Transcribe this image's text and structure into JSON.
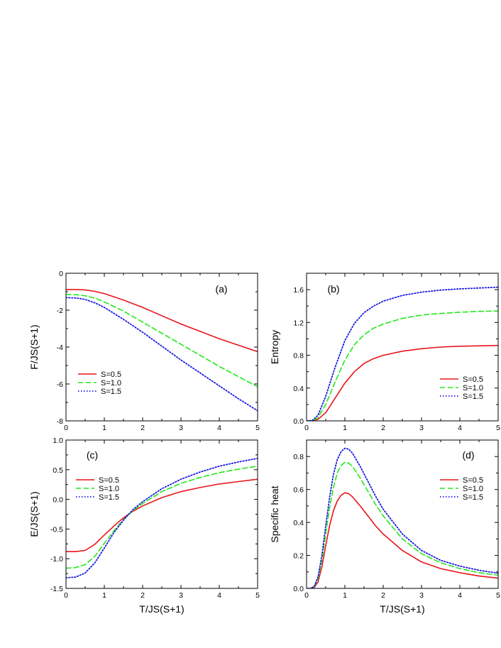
{
  "colors": {
    "s05": "#e8141a",
    "s10": "#22e81a",
    "s15": "#1a1ae0",
    "frame": "#000000"
  },
  "chart_data": [
    {
      "id": "a",
      "type": "line",
      "letter": "(a)",
      "xlabel": "",
      "ylabel": "F/JS(S+1)",
      "xlim": [
        0,
        5
      ],
      "ylim": [
        -8,
        0
      ],
      "xticks": [
        0,
        1,
        2,
        3,
        4,
        5
      ],
      "xtick_labels": [
        "0",
        "1",
        "2",
        "3",
        "4",
        "5"
      ],
      "yticks": [
        -8,
        -6,
        -4,
        -2,
        0
      ],
      "ytick_labels": [
        "-8",
        "-6",
        "-4",
        "-2",
        "0"
      ],
      "legend": "bottom-left",
      "x": [
        0,
        0.25,
        0.5,
        0.75,
        1,
        1.5,
        2,
        2.5,
        3,
        3.5,
        4,
        4.5,
        5
      ],
      "series": [
        {
          "name": "S=0.5",
          "style": "solid",
          "colorKey": "s05",
          "values": [
            -0.88,
            -0.88,
            -0.9,
            -0.98,
            -1.1,
            -1.45,
            -1.85,
            -2.3,
            -2.75,
            -3.15,
            -3.55,
            -3.9,
            -4.25
          ]
        },
        {
          "name": "S=1.0",
          "style": "dashed",
          "colorKey": "s10",
          "values": [
            -1.15,
            -1.16,
            -1.22,
            -1.35,
            -1.55,
            -2.05,
            -2.65,
            -3.25,
            -3.85,
            -4.45,
            -5.05,
            -5.6,
            -6.15
          ]
        },
        {
          "name": "S=1.5",
          "style": "dotted",
          "colorKey": "s15",
          "values": [
            -1.32,
            -1.34,
            -1.42,
            -1.6,
            -1.85,
            -2.5,
            -3.2,
            -3.95,
            -4.7,
            -5.4,
            -6.1,
            -6.8,
            -7.45
          ]
        }
      ]
    },
    {
      "id": "b",
      "type": "line",
      "letter": "(b)",
      "xlabel": "",
      "ylabel": "Entropy",
      "xlim": [
        0,
        5
      ],
      "ylim": [
        0,
        1.8
      ],
      "xticks": [
        0,
        1,
        2,
        3,
        4,
        5
      ],
      "xtick_labels": [
        "0",
        "1",
        "2",
        "3",
        "4",
        "5"
      ],
      "yticks": [
        0,
        0.4,
        0.8,
        1.2,
        1.6
      ],
      "ytick_labels": [
        "0.0",
        "0.4",
        "0.8",
        "1.2",
        "1.6"
      ],
      "legend": "bottom-right",
      "x": [
        0,
        0.15,
        0.3,
        0.5,
        0.75,
        1,
        1.25,
        1.5,
        1.75,
        2,
        2.5,
        3,
        3.5,
        4,
        4.5,
        5
      ],
      "series": [
        {
          "name": "S=0.5",
          "style": "solid",
          "colorKey": "s05",
          "values": [
            0,
            0,
            0.02,
            0.1,
            0.28,
            0.46,
            0.6,
            0.7,
            0.76,
            0.8,
            0.85,
            0.88,
            0.9,
            0.91,
            0.915,
            0.92
          ]
        },
        {
          "name": "S=1.0",
          "style": "dashed",
          "colorKey": "s10",
          "values": [
            0,
            0,
            0.04,
            0.2,
            0.48,
            0.74,
            0.93,
            1.05,
            1.13,
            1.18,
            1.25,
            1.29,
            1.31,
            1.325,
            1.335,
            1.34
          ]
        },
        {
          "name": "S=1.5",
          "style": "dotted",
          "colorKey": "s15",
          "values": [
            0,
            0.005,
            0.07,
            0.3,
            0.66,
            0.98,
            1.19,
            1.32,
            1.4,
            1.46,
            1.53,
            1.57,
            1.595,
            1.61,
            1.62,
            1.63
          ]
        }
      ]
    },
    {
      "id": "c",
      "type": "line",
      "letter": "(c)",
      "xlabel": "T/JS(S+1)",
      "ylabel": "E/JS(S+1)",
      "xlim": [
        0,
        5
      ],
      "ylim": [
        -1.5,
        1.0
      ],
      "xticks": [
        0,
        1,
        2,
        3,
        4,
        5
      ],
      "xtick_labels": [
        "0",
        "1",
        "2",
        "3",
        "4",
        "5"
      ],
      "yticks": [
        -1.5,
        -1.0,
        -0.5,
        0.0,
        0.5,
        1.0
      ],
      "ytick_labels": [
        "-1.5",
        "-1.0",
        "-0.5",
        "0.0",
        "0.5",
        "1.0"
      ],
      "legend": "top-left",
      "x": [
        0,
        0.25,
        0.5,
        0.75,
        1,
        1.25,
        1.5,
        1.75,
        2,
        2.5,
        3,
        3.5,
        4,
        4.5,
        5
      ],
      "series": [
        {
          "name": "S=0.5",
          "style": "solid",
          "colorKey": "s05",
          "values": [
            -0.88,
            -0.88,
            -0.86,
            -0.76,
            -0.6,
            -0.45,
            -0.31,
            -0.2,
            -0.11,
            0.03,
            0.13,
            0.2,
            0.26,
            0.3,
            0.34
          ]
        },
        {
          "name": "S=1.0",
          "style": "dashed",
          "colorKey": "s10",
          "values": [
            -1.16,
            -1.15,
            -1.1,
            -0.96,
            -0.74,
            -0.53,
            -0.34,
            -0.19,
            -0.07,
            0.13,
            0.27,
            0.37,
            0.45,
            0.51,
            0.56
          ]
        },
        {
          "name": "S=1.5",
          "style": "dotted",
          "colorKey": "s15",
          "values": [
            -1.32,
            -1.31,
            -1.24,
            -1.07,
            -0.82,
            -0.56,
            -0.35,
            -0.17,
            -0.04,
            0.18,
            0.34,
            0.46,
            0.56,
            0.63,
            0.69
          ]
        }
      ]
    },
    {
      "id": "d",
      "type": "line",
      "letter": "(d)",
      "xlabel": "T/JS(S+1)",
      "ylabel": "Specific heat",
      "xlim": [
        0,
        5
      ],
      "ylim": [
        0,
        0.9
      ],
      "xticks": [
        0,
        1,
        2,
        3,
        4,
        5
      ],
      "xtick_labels": [
        "0",
        "1",
        "2",
        "3",
        "4",
        "5"
      ],
      "yticks": [
        0,
        0.2,
        0.4,
        0.6,
        0.8
      ],
      "ytick_labels": [
        "0.0",
        "0.2",
        "0.4",
        "0.6",
        "0.8"
      ],
      "legend": "top-right",
      "x": [
        0,
        0.1,
        0.2,
        0.3,
        0.4,
        0.5,
        0.6,
        0.7,
        0.8,
        0.9,
        1,
        1.1,
        1.2,
        1.4,
        1.6,
        1.8,
        2,
        2.5,
        3,
        3.5,
        4,
        4.5,
        5
      ],
      "series": [
        {
          "name": "S=0.5",
          "style": "solid",
          "colorKey": "s05",
          "values": [
            0,
            0,
            0.005,
            0.04,
            0.13,
            0.26,
            0.38,
            0.47,
            0.53,
            0.565,
            0.58,
            0.575,
            0.555,
            0.5,
            0.44,
            0.38,
            0.33,
            0.23,
            0.16,
            0.12,
            0.095,
            0.075,
            0.062
          ]
        },
        {
          "name": "S=1.0",
          "style": "dashed",
          "colorKey": "s10",
          "values": [
            0,
            0,
            0.01,
            0.06,
            0.17,
            0.33,
            0.49,
            0.61,
            0.7,
            0.745,
            0.765,
            0.76,
            0.74,
            0.67,
            0.59,
            0.51,
            0.44,
            0.3,
            0.21,
            0.155,
            0.12,
            0.095,
            0.08
          ]
        },
        {
          "name": "S=1.5",
          "style": "dotted",
          "colorKey": "s15",
          "values": [
            0,
            0,
            0.012,
            0.07,
            0.2,
            0.38,
            0.55,
            0.69,
            0.78,
            0.83,
            0.85,
            0.845,
            0.82,
            0.74,
            0.65,
            0.56,
            0.48,
            0.33,
            0.23,
            0.17,
            0.135,
            0.11,
            0.092
          ]
        }
      ]
    }
  ]
}
